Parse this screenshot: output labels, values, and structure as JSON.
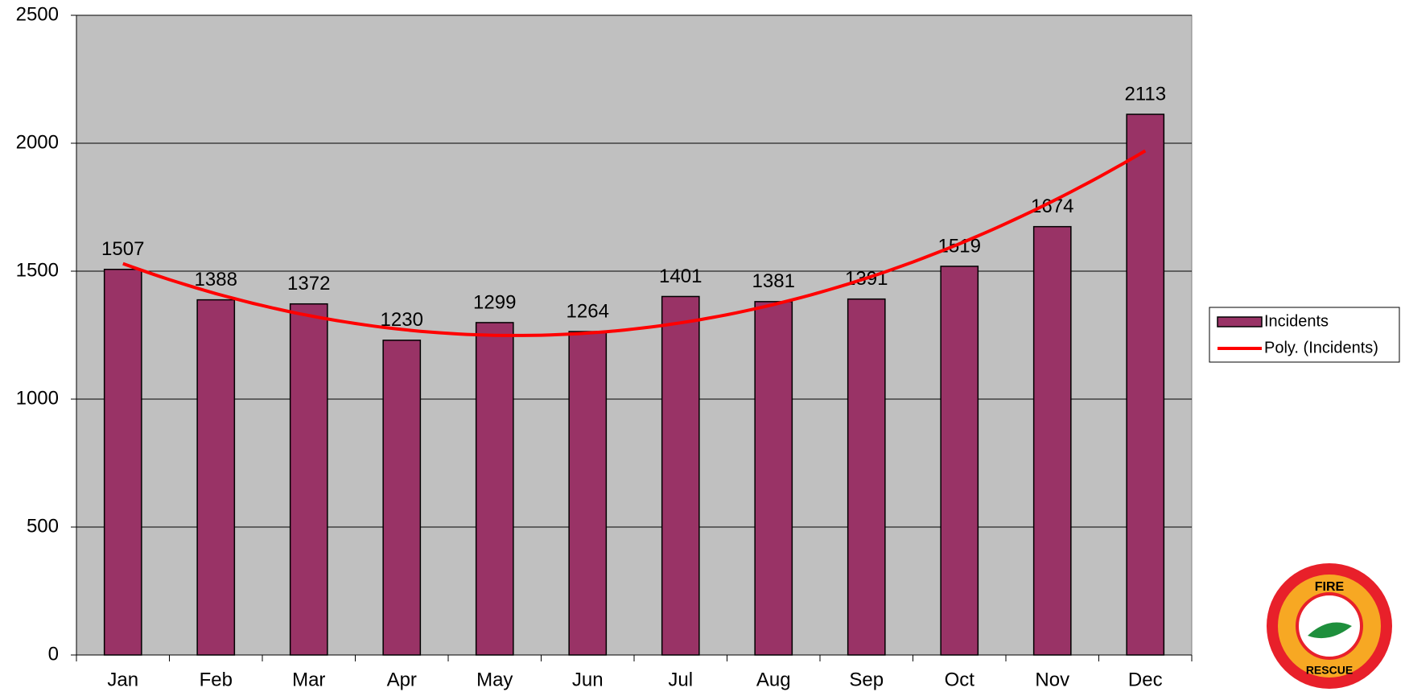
{
  "chart_data": {
    "type": "bar",
    "categories": [
      "Jan",
      "Feb",
      "Mar",
      "Apr",
      "May",
      "Jun",
      "Jul",
      "Aug",
      "Sep",
      "Oct",
      "Nov",
      "Dec"
    ],
    "series": [
      {
        "name": "Incidents",
        "color": "#993366",
        "values": [
          1507,
          1388,
          1372,
          1230,
          1299,
          1264,
          1401,
          1381,
          1391,
          1519,
          1674,
          2113
        ]
      }
    ],
    "trendline": {
      "name": "Poly. (Incidents)",
      "color": "#ff0000",
      "order": 2
    },
    "ylim": [
      0,
      2500
    ],
    "yticks": [
      0,
      500,
      1000,
      1500,
      2000,
      2500
    ],
    "grid": true,
    "legend": "right",
    "logo": {
      "top": "FIRE",
      "bottom": "RESCUE"
    }
  }
}
